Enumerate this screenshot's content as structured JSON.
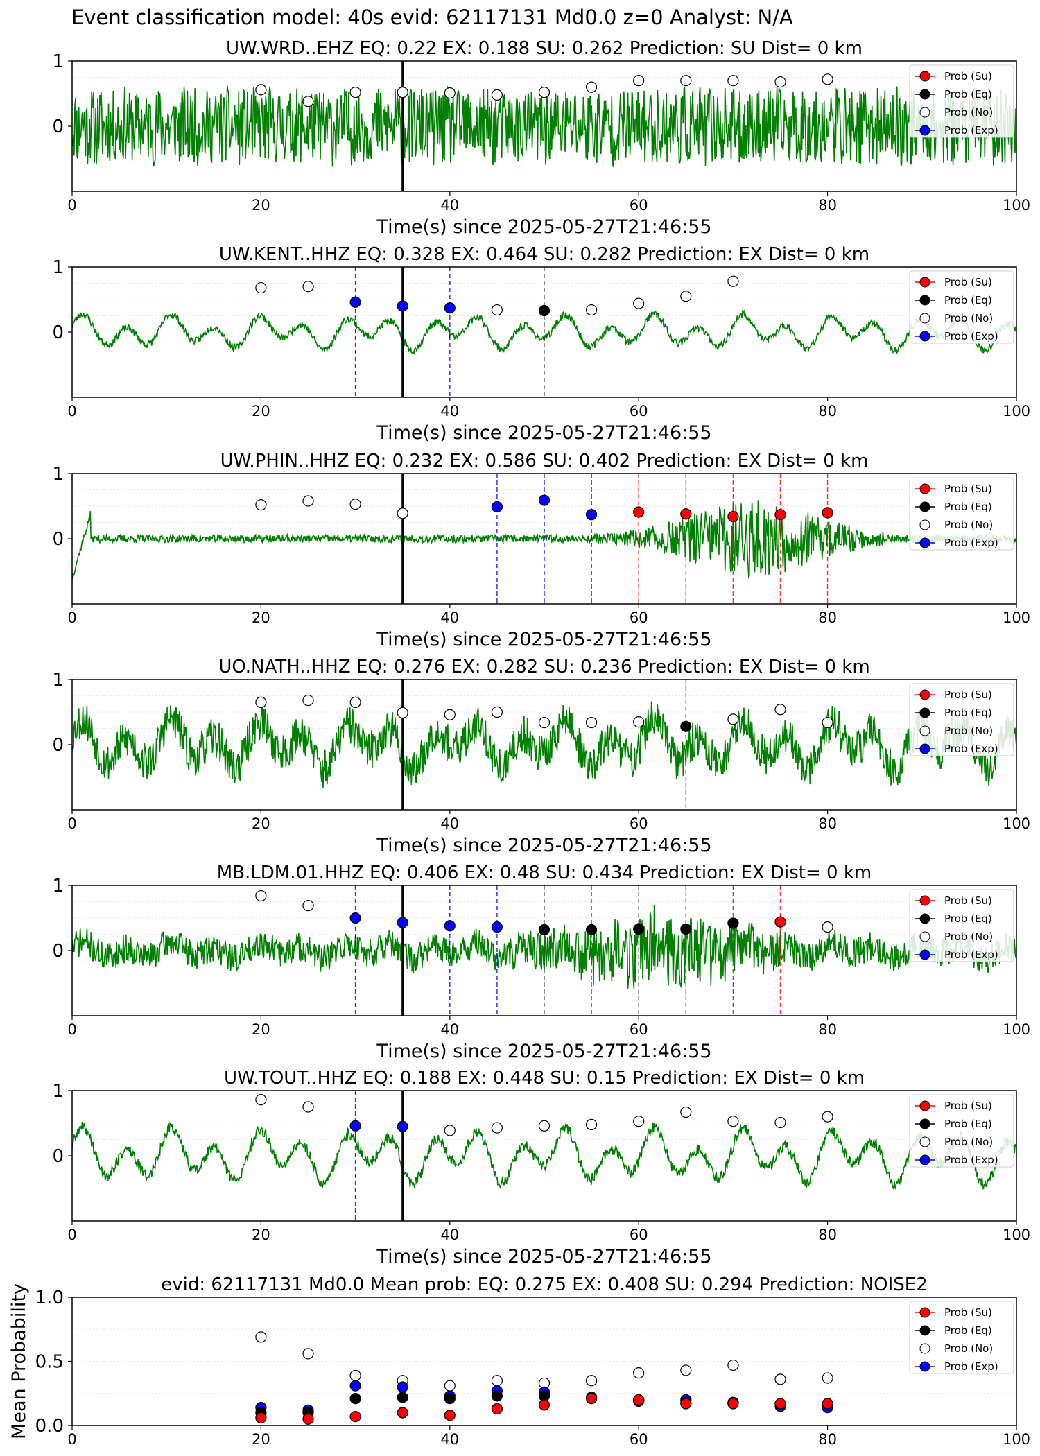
{
  "figure_title": "Event classification model: 40s evid: 62117131 Md0.0 z=0 Analyst: N/A",
  "legend_labels": [
    "Prob (Su)",
    "Prob (Eq)",
    "Prob (No)",
    "Prob (Exp)"
  ],
  "colors": {
    "waveform": "#008000",
    "su": "#ff0000",
    "eq": "#000000",
    "no": "#ffffff",
    "exp": "#0000ff",
    "origin_line": "#000000"
  },
  "chart_data": [
    {
      "type": "line",
      "title": "UW.WRD..EHZ   EQ: 0.22  EX: 0.188  SU: 0.262   Prediction: SU    Dist= 0 km",
      "xlabel": "Time(s) since 2025-05-27T21:46:55",
      "ylabel": "",
      "xlim": [
        0,
        100
      ],
      "ylim": [
        -1,
        1
      ],
      "xticks": [
        "0",
        "20",
        "40",
        "60",
        "80",
        "100"
      ],
      "yticks": [
        "0",
        "1"
      ],
      "origin_time": 35,
      "waveform": {
        "character": "noise",
        "amplitude": 0.45,
        "seed": 11
      },
      "series": [
        {
          "name": "Prob (No)",
          "x": [
            20,
            25,
            30,
            35,
            40,
            45,
            50,
            55,
            60,
            65,
            70,
            75,
            80
          ],
          "y": [
            0.56,
            0.38,
            0.52,
            0.52,
            0.51,
            0.48,
            0.52,
            0.6,
            0.7,
            0.7,
            0.7,
            0.68,
            0.72
          ]
        }
      ],
      "markers": {
        "su": [],
        "eq": [],
        "exp": []
      }
    },
    {
      "type": "line",
      "title": "UW.KENT..HHZ   EQ: 0.328  EX: 0.464  SU: 0.282   Prediction: EX    Dist= 0 km",
      "xlabel": "Time(s) since 2025-05-27T21:46:55",
      "ylabel": "",
      "xlim": [
        0,
        100
      ],
      "ylim": [
        -1,
        1
      ],
      "xticks": [
        "0",
        "20",
        "40",
        "60",
        "80",
        "100"
      ],
      "yticks": [
        "0",
        "1"
      ],
      "origin_time": 35,
      "waveform": {
        "character": "wavy",
        "amplitude": 0.22,
        "seed": 23
      },
      "series": [
        {
          "name": "Prob (No)",
          "x": [
            20,
            25,
            45,
            55,
            60,
            65,
            70
          ],
          "y": [
            0.68,
            0.7,
            0.34,
            0.34,
            0.44,
            0.55,
            0.78
          ]
        },
        {
          "name": "Prob (Exp)",
          "x": [
            30,
            35,
            40
          ],
          "y": [
            0.46,
            0.4,
            0.37
          ]
        },
        {
          "name": "Prob (Eq)",
          "x": [
            50
          ],
          "y": [
            0.33
          ]
        }
      ],
      "markers": {
        "su": [],
        "eq": [
          50
        ],
        "exp": [
          30,
          40
        ]
      }
    },
    {
      "type": "line",
      "title": "UW.PHIN..HHZ   EQ: 0.232  EX: 0.586  SU: 0.402   Prediction: EX    Dist= 0 km",
      "xlabel": "Time(s) since 2025-05-27T21:46:55",
      "ylabel": "",
      "xlim": [
        0,
        100
      ],
      "ylim": [
        -1,
        1
      ],
      "xticks": [
        "0",
        "20",
        "40",
        "60",
        "80",
        "100"
      ],
      "yticks": [
        "0",
        "1"
      ],
      "origin_time": 35,
      "waveform": {
        "character": "burst",
        "amplitude": 0.06,
        "seed": 37
      },
      "series": [
        {
          "name": "Prob (No)",
          "x": [
            20,
            25,
            30,
            35
          ],
          "y": [
            0.52,
            0.58,
            0.53,
            0.39
          ]
        },
        {
          "name": "Prob (Exp)",
          "x": [
            45,
            50,
            55
          ],
          "y": [
            0.49,
            0.59,
            0.37
          ]
        },
        {
          "name": "Prob (Su)",
          "x": [
            60,
            65,
            70,
            75,
            80
          ],
          "y": [
            0.41,
            0.38,
            0.34,
            0.37,
            0.4
          ]
        }
      ],
      "markers": {
        "su": [
          60,
          65,
          70,
          75,
          80
        ],
        "eq": [],
        "exp": [
          45,
          50,
          55
        ]
      }
    },
    {
      "type": "line",
      "title": "UO.NATH..HHZ   EQ: 0.276  EX: 0.282  SU: 0.236   Prediction: EX    Dist= 0 km",
      "xlabel": "Time(s) since 2025-05-27T21:46:55",
      "ylabel": "",
      "xlim": [
        0,
        100
      ],
      "ylim": [
        -1,
        1
      ],
      "xticks": [
        "0",
        "20",
        "40",
        "60",
        "80",
        "100"
      ],
      "yticks": [
        "0",
        "1"
      ],
      "origin_time": 35,
      "waveform": {
        "character": "wavy-noisy",
        "amplitude": 0.4,
        "seed": 53
      },
      "series": [
        {
          "name": "Prob (No)",
          "x": [
            20,
            25,
            30,
            35,
            40,
            45,
            50,
            55,
            60,
            70,
            75,
            80
          ],
          "y": [
            0.65,
            0.68,
            0.65,
            0.49,
            0.46,
            0.5,
            0.34,
            0.34,
            0.35,
            0.39,
            0.54,
            0.34
          ]
        },
        {
          "name": "Prob (Eq)",
          "x": [
            65
          ],
          "y": [
            0.28
          ]
        }
      ],
      "markers": {
        "su": [],
        "eq": [
          65
        ],
        "exp": []
      }
    },
    {
      "type": "line",
      "title": "MB.LDM.01.HHZ   EQ: 0.406  EX: 0.48  SU: 0.434   Prediction: EX    Dist= 0 km",
      "xlabel": "Time(s) since 2025-05-27T21:46:55",
      "ylabel": "",
      "xlim": [
        0,
        100
      ],
      "ylim": [
        -1,
        1
      ],
      "xticks": [
        "0",
        "20",
        "40",
        "60",
        "80",
        "100"
      ],
      "yticks": [
        "0",
        "1"
      ],
      "origin_time": 35,
      "waveform": {
        "character": "noisy-burst",
        "amplitude": 0.25,
        "seed": 71
      },
      "series": [
        {
          "name": "Prob (No)",
          "x": [
            20,
            25,
            80
          ],
          "y": [
            0.84,
            0.69,
            0.36
          ]
        },
        {
          "name": "Prob (Exp)",
          "x": [
            30,
            35,
            40,
            45
          ],
          "y": [
            0.5,
            0.43,
            0.38,
            0.36
          ]
        },
        {
          "name": "Prob (Eq)",
          "x": [
            50,
            55,
            60,
            65,
            70
          ],
          "y": [
            0.32,
            0.32,
            0.33,
            0.33,
            0.42
          ]
        },
        {
          "name": "Prob (Su)",
          "x": [
            75
          ],
          "y": [
            0.44
          ]
        }
      ],
      "markers": {
        "su": [
          75
        ],
        "eq": [
          50,
          55,
          60,
          65,
          70
        ],
        "exp": [
          30,
          40,
          45
        ]
      }
    },
    {
      "type": "line",
      "title": "UW.TOUT..HHZ   EQ: 0.188  EX: 0.448  SU: 0.15   Prediction: EX    Dist= 0 km",
      "xlabel": "Time(s) since 2025-05-27T21:46:55",
      "ylabel": "",
      "xlim": [
        0,
        100
      ],
      "ylim": [
        -1,
        1
      ],
      "xticks": [
        "0",
        "20",
        "40",
        "60",
        "80",
        "100"
      ],
      "yticks": [
        "0",
        "1"
      ],
      "origin_time": 35,
      "waveform": {
        "character": "wavy",
        "amplitude": 0.35,
        "seed": 89
      },
      "series": [
        {
          "name": "Prob (No)",
          "x": [
            20,
            25,
            40,
            45,
            50,
            55,
            60,
            65,
            70,
            75,
            80
          ],
          "y": [
            0.86,
            0.75,
            0.39,
            0.43,
            0.46,
            0.48,
            0.53,
            0.67,
            0.53,
            0.51,
            0.6
          ]
        },
        {
          "name": "Prob (Exp)",
          "x": [
            30,
            35
          ],
          "y": [
            0.46,
            0.45
          ]
        }
      ],
      "markers": {
        "su": [],
        "eq": [],
        "exp": [
          30
        ]
      }
    },
    {
      "type": "scatter",
      "title": "evid: 62117131  Md0.0   Mean prob:   EQ: 0.275  EX: 0.408  SU: 0.294   Prediction: NOISE2",
      "xlabel": "",
      "ylabel": "Mean Probability",
      "xlim": [
        0,
        100
      ],
      "ylim": [
        0,
        1
      ],
      "xticks": [
        "0",
        "20",
        "40",
        "60",
        "80",
        "100"
      ],
      "yticks": [
        "0.0",
        "0.5",
        "1.0"
      ],
      "series": [
        {
          "name": "Prob (No)",
          "x": [
            20,
            25,
            30,
            35,
            40,
            45,
            50,
            55,
            60,
            65,
            70,
            75,
            80
          ],
          "y": [
            0.69,
            0.56,
            0.39,
            0.35,
            0.31,
            0.35,
            0.33,
            0.35,
            0.41,
            0.43,
            0.47,
            0.36,
            0.37
          ]
        },
        {
          "name": "Prob (Exp)",
          "x": [
            20,
            25,
            30,
            35,
            40,
            45,
            50,
            55,
            60,
            65,
            70,
            75,
            80
          ],
          "y": [
            0.14,
            0.12,
            0.31,
            0.3,
            0.23,
            0.27,
            0.26,
            0.22,
            0.2,
            0.2,
            0.18,
            0.15,
            0.14
          ]
        },
        {
          "name": "Prob (Eq)",
          "x": [
            20,
            25,
            30,
            35,
            40,
            45,
            50,
            55,
            60,
            65,
            70,
            75,
            80
          ],
          "y": [
            0.1,
            0.1,
            0.21,
            0.22,
            0.21,
            0.23,
            0.23,
            0.22,
            0.19,
            0.18,
            0.18,
            0.17,
            0.17
          ]
        },
        {
          "name": "Prob (Su)",
          "x": [
            20,
            25,
            30,
            35,
            40,
            45,
            50,
            55,
            60,
            65,
            70,
            75,
            80
          ],
          "y": [
            0.06,
            0.05,
            0.07,
            0.1,
            0.08,
            0.13,
            0.16,
            0.21,
            0.2,
            0.17,
            0.17,
            0.17,
            0.17
          ]
        }
      ]
    }
  ]
}
